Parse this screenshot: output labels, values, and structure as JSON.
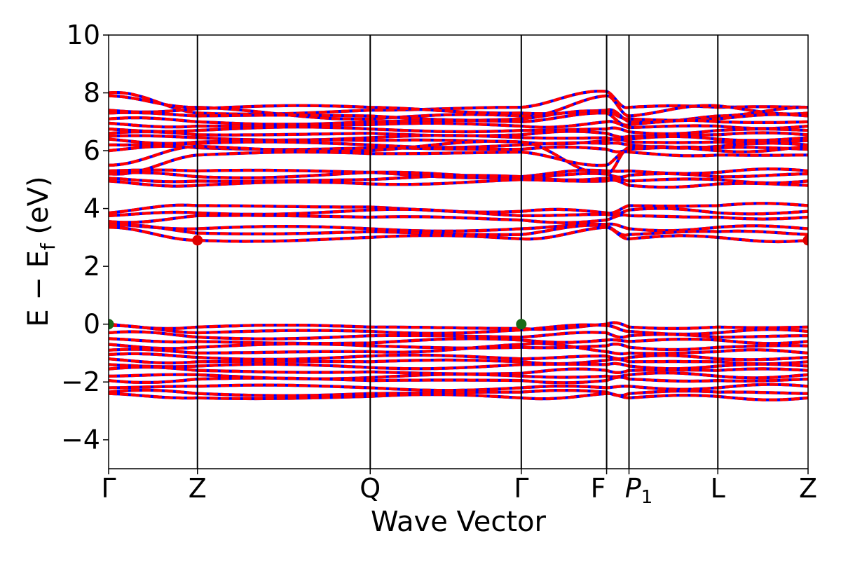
{
  "chart_data": {
    "type": "line",
    "title": "",
    "xlabel": "Wave Vector",
    "ylabel": "E − E",
    "ylabel_subscript": "f",
    "ylabel_unit": "(eV)",
    "ylim": [
      -5,
      10
    ],
    "yticks": [
      -4,
      -2,
      0,
      2,
      4,
      6,
      8,
      10
    ],
    "ytick_labels": [
      "−4",
      "−2",
      "0",
      "2",
      "4",
      "6",
      "8",
      "10"
    ],
    "xlim": [
      0,
      1
    ],
    "kpath": [
      {
        "label": "Γ",
        "x": 0.0
      },
      {
        "label": "Z",
        "x": 0.127
      },
      {
        "label": "Q",
        "x": 0.374
      },
      {
        "label": "Γ",
        "x": 0.59
      },
      {
        "label": "F",
        "x": 0.712
      },
      {
        "label": "P",
        "sub": "1",
        "x": 0.744
      },
      {
        "label": "L",
        "x": 0.871
      },
      {
        "label": "Z",
        "x": 1.0
      }
    ],
    "grid": false,
    "series_colors": {
      "spin_up": "#ff0000",
      "spin_down": "#0000ff"
    },
    "band_edges": [
      {
        "name": "VBM",
        "x": 0.0,
        "y": 0.0,
        "color": "#1a6b1a"
      },
      {
        "name": "VBM",
        "x": 0.59,
        "y": 0.0,
        "color": "#1a6b1a"
      },
      {
        "name": "CBM",
        "x": 0.127,
        "y": 2.9,
        "color": "#e00000"
      },
      {
        "name": "CBM",
        "x": 1.0,
        "y": 2.9,
        "color": "#e00000"
      }
    ],
    "bands": {
      "conduction_upper": [
        {
          "y": [
            8.0,
            7.3,
            7.4,
            7.5,
            8.05,
            7.5,
            7.5,
            7.5
          ]
        },
        {
          "y": [
            7.9,
            7.5,
            7.1,
            7.2,
            7.9,
            7.2,
            7.55,
            7.3
          ]
        },
        {
          "y": [
            7.4,
            7.45,
            7.5,
            7.3,
            7.4,
            7.0,
            7.2,
            7.5
          ]
        },
        {
          "y": [
            7.3,
            7.2,
            7.2,
            7.1,
            7.35,
            7.1,
            7.1,
            7.2
          ]
        },
        {
          "y": [
            7.1,
            7.0,
            7.0,
            7.0,
            7.3,
            6.9,
            7.0,
            7.0
          ]
        },
        {
          "y": [
            6.95,
            6.85,
            6.9,
            6.85,
            7.0,
            6.8,
            6.85,
            6.85
          ]
        },
        {
          "y": [
            6.75,
            6.7,
            6.75,
            6.7,
            6.75,
            6.65,
            6.7,
            6.7
          ]
        },
        {
          "y": [
            6.6,
            6.55,
            6.6,
            6.55,
            6.6,
            6.5,
            6.55,
            6.55
          ]
        },
        {
          "y": [
            6.5,
            6.45,
            6.45,
            6.45,
            6.45,
            6.4,
            6.4,
            6.45
          ]
        },
        {
          "y": [
            6.4,
            6.3,
            6.35,
            6.3,
            6.35,
            6.3,
            6.3,
            6.35
          ]
        },
        {
          "y": [
            6.2,
            6.25,
            6.2,
            6.2,
            6.25,
            6.2,
            6.15,
            6.2
          ]
        },
        {
          "y": [
            6.0,
            6.1,
            6.1,
            6.05,
            6.05,
            6.05,
            6.1,
            6.05
          ]
        },
        {
          "y": [
            5.5,
            6.15,
            6.0,
            6.3,
            5.2,
            6.1,
            6.0,
            6.15
          ]
        },
        {
          "y": [
            5.2,
            5.85,
            5.9,
            5.95,
            5.5,
            5.95,
            5.85,
            5.85
          ]
        }
      ],
      "conduction_mid": [
        {
          "y": [
            5.3,
            5.3,
            5.25,
            5.1,
            5.3,
            5.3,
            5.25,
            5.3
          ]
        },
        {
          "y": [
            5.2,
            5.1,
            5.25,
            5.05,
            5.2,
            5.15,
            5.1,
            5.2
          ]
        },
        {
          "y": [
            5.05,
            4.95,
            5.0,
            5.1,
            5.05,
            4.95,
            5.0,
            4.95
          ]
        },
        {
          "y": [
            4.95,
            4.8,
            4.85,
            5.0,
            4.95,
            4.8,
            4.85,
            4.8
          ]
        },
        {
          "y": [
            3.85,
            4.1,
            4.05,
            3.9,
            3.85,
            4.1,
            4.1,
            4.1
          ]
        },
        {
          "y": [
            3.75,
            3.85,
            3.95,
            3.75,
            3.8,
            3.95,
            3.85,
            3.9
          ]
        },
        {
          "y": [
            3.55,
            3.75,
            3.7,
            3.6,
            3.6,
            3.75,
            3.7,
            3.7
          ]
        },
        {
          "y": [
            3.45,
            3.3,
            3.3,
            3.3,
            3.45,
            3.3,
            3.35,
            3.3
          ]
        },
        {
          "y": [
            3.4,
            3.15,
            3.2,
            3.1,
            3.4,
            3.1,
            3.2,
            3.1
          ]
        },
        {
          "y": [
            3.35,
            2.9,
            3.0,
            2.95,
            3.35,
            2.95,
            3.0,
            2.9
          ]
        }
      ],
      "valence": [
        {
          "y": [
            0.0,
            -0.1,
            -0.1,
            -0.15,
            0.0,
            -0.1,
            -0.1,
            -0.1
          ]
        },
        {
          "y": [
            -0.05,
            -0.3,
            -0.25,
            -0.2,
            -0.05,
            -0.25,
            -0.3,
            -0.25
          ]
        },
        {
          "y": [
            -0.3,
            -0.45,
            -0.4,
            -0.45,
            -0.3,
            -0.4,
            -0.45,
            -0.4
          ]
        },
        {
          "y": [
            -0.5,
            -0.6,
            -0.65,
            -0.55,
            -0.55,
            -0.6,
            -0.55,
            -0.6
          ]
        },
        {
          "y": [
            -0.7,
            -0.8,
            -0.75,
            -0.8,
            -0.75,
            -0.8,
            -0.8,
            -0.75
          ]
        },
        {
          "y": [
            -0.9,
            -1.0,
            -0.95,
            -0.7,
            -0.95,
            -1.0,
            -0.95,
            -1.0
          ]
        },
        {
          "y": [
            -1.05,
            -1.15,
            -1.1,
            -1.2,
            -1.1,
            -1.15,
            -1.2,
            -1.15
          ]
        },
        {
          "y": [
            -1.2,
            -1.3,
            -1.3,
            -1.3,
            -1.25,
            -1.3,
            -1.3,
            -1.3
          ]
        },
        {
          "y": [
            -1.4,
            -1.45,
            -1.5,
            -1.4,
            -1.4,
            -1.45,
            -1.45,
            -1.45
          ]
        },
        {
          "y": [
            -1.55,
            -1.6,
            -1.65,
            -1.7,
            -1.6,
            -1.6,
            -1.6,
            -1.6
          ]
        },
        {
          "y": [
            -1.8,
            -1.75,
            -1.85,
            -1.8,
            -1.8,
            -1.75,
            -1.8,
            -1.75
          ]
        },
        {
          "y": [
            -1.95,
            -1.9,
            -1.95,
            -1.95,
            -1.95,
            -1.9,
            -1.95,
            -1.9
          ]
        },
        {
          "y": [
            -2.2,
            -2.15,
            -2.2,
            -2.2,
            -2.2,
            -2.15,
            -2.2,
            -2.15
          ]
        },
        {
          "y": [
            -2.35,
            -2.4,
            -2.4,
            -2.35,
            -2.35,
            -2.4,
            -2.35,
            -2.4
          ]
        },
        {
          "y": [
            -2.4,
            -2.55,
            -2.5,
            -2.55,
            -2.4,
            -2.55,
            -2.5,
            -2.55
          ]
        }
      ]
    }
  }
}
